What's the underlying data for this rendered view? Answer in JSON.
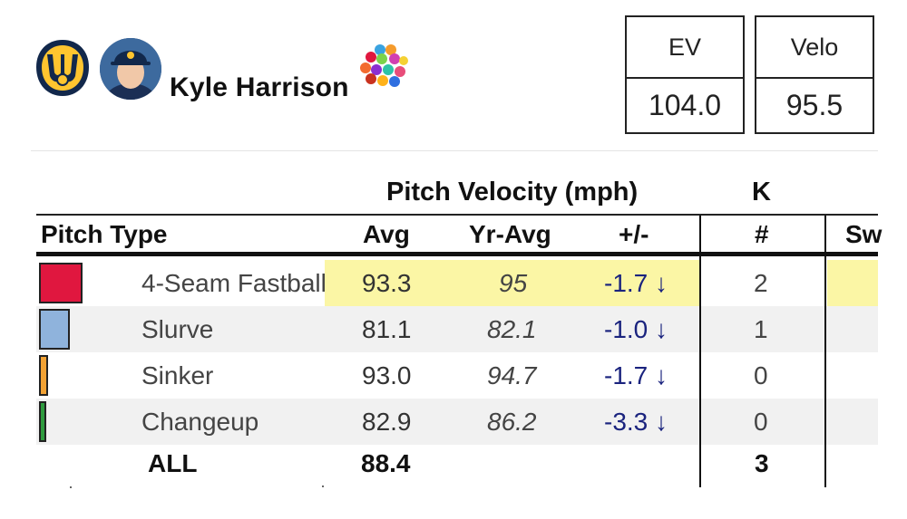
{
  "player": {
    "name": "Kyle Harrison"
  },
  "stat_boxes": [
    {
      "label": "EV",
      "value": "104.0"
    },
    {
      "label": "Velo",
      "value": "95.5"
    }
  ],
  "table": {
    "group_headers": {
      "velocity": "Pitch Velocity (mph)",
      "k": "K"
    },
    "columns": {
      "pitch_type": "Pitch Type",
      "avg": "Avg",
      "yr_avg": "Yr-Avg",
      "diff": "+/-",
      "count": "#",
      "partial": "Sw"
    },
    "rows": [
      {
        "pitch": "4-Seam Fastball",
        "avg": "93.3",
        "yr_avg": "95",
        "diff": "-1.7 ↓",
        "k": "2",
        "color": "#e0173f",
        "highlight": true
      },
      {
        "pitch": "Slurve",
        "avg": "81.1",
        "yr_avg": "82.1",
        "diff": "-1.0 ↓",
        "k": "1",
        "color": "#8fb3dc",
        "highlight": false
      },
      {
        "pitch": "Sinker",
        "avg": "93.0",
        "yr_avg": "94.7",
        "diff": "-1.7 ↓",
        "k": "0",
        "color": "#f2a234",
        "highlight": false
      },
      {
        "pitch": "Changeup",
        "avg": "82.9",
        "yr_avg": "86.2",
        "diff": "-3.3 ↓",
        "k": "0",
        "color": "#2e9b3e",
        "highlight": false
      }
    ],
    "totals": {
      "label": "ALL",
      "avg": "88.4",
      "k": "3"
    }
  },
  "colors": {
    "highlight": "#fbf6a5",
    "diff_text": "#1a237e",
    "team_navy": "#12284b",
    "team_gold": "#ffc52f"
  },
  "icons": {
    "team_logo": "brewers-ball-glove-logo",
    "pitch_mix": "colored-dots-cluster-icon"
  }
}
